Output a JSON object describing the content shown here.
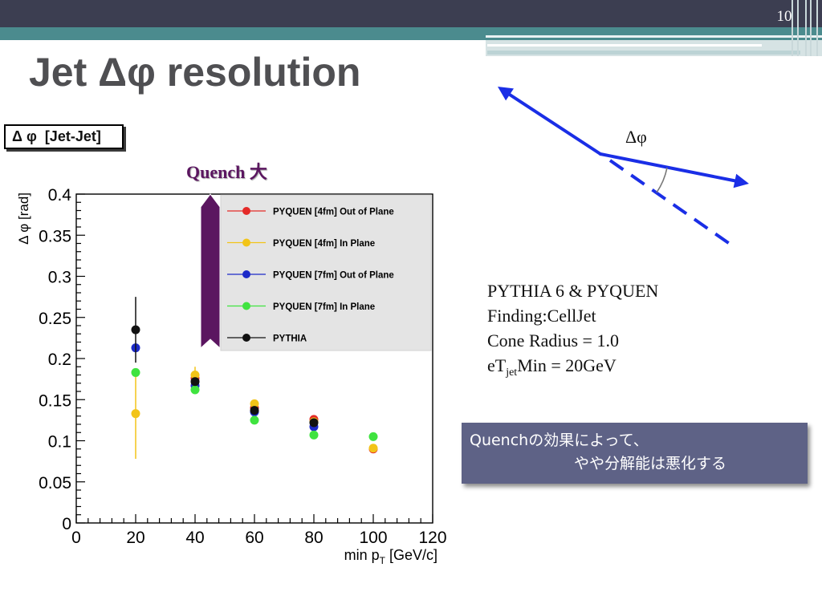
{
  "slide": {
    "page_number": "10",
    "title": "Jet Δφ resolution"
  },
  "theme": {
    "header_dark": "#3c3e51",
    "header_teal": "#4b8b8e",
    "title_color": "#4f4f52",
    "annotation_purple": "#5b1660",
    "diagram_blue": "#1a2ee6",
    "note_background": "#5e6286"
  },
  "annotation": {
    "text": "Quench 大"
  },
  "chart_data": {
    "type": "scatter",
    "title": "Δ φ  [Jet-Jet]",
    "xlabel": {
      "main": "min p",
      "sub": "T",
      "unit": " [GeV/c]"
    },
    "ylabel": "Δ φ [rad]",
    "xlim": [
      0,
      120
    ],
    "ylim": [
      0,
      0.4
    ],
    "xticks": [
      "0",
      "20",
      "40",
      "60",
      "80",
      "100",
      "120"
    ],
    "yticks": [
      "0",
      "0.05",
      "0.1",
      "0.15",
      "0.2",
      "0.25",
      "0.3",
      "0.35",
      "0.4"
    ],
    "grid": false,
    "legend_position": "top-right",
    "series": [
      {
        "name": "PYQUEN [4fm] Out of Plane",
        "color": "#e42a28",
        "points": [
          {
            "x": 40,
            "y": 0.176
          },
          {
            "x": 60,
            "y": 0.14
          },
          {
            "x": 80,
            "y": 0.126
          },
          {
            "x": 100,
            "y": 0.09
          }
        ]
      },
      {
        "name": "PYQUEN [4fm] In Plane",
        "color": "#f2c418",
        "points": [
          {
            "x": 20,
            "y": 0.133,
            "yerr": 0.055
          },
          {
            "x": 40,
            "y": 0.18,
            "yerr": 0.01
          },
          {
            "x": 60,
            "y": 0.145
          },
          {
            "x": 80,
            "y": 0.123
          },
          {
            "x": 100,
            "y": 0.091
          }
        ]
      },
      {
        "name": "PYQUEN [7fm] Out of Plane",
        "color": "#1c2ac8",
        "points": [
          {
            "x": 20,
            "y": 0.213
          },
          {
            "x": 40,
            "y": 0.167
          },
          {
            "x": 60,
            "y": 0.135
          },
          {
            "x": 80,
            "y": 0.117
          }
        ]
      },
      {
        "name": "PYQUEN [7fm] In Plane",
        "color": "#3fe33f",
        "points": [
          {
            "x": 20,
            "y": 0.183
          },
          {
            "x": 40,
            "y": 0.162
          },
          {
            "x": 60,
            "y": 0.125
          },
          {
            "x": 80,
            "y": 0.107
          },
          {
            "x": 100,
            "y": 0.105
          }
        ]
      },
      {
        "name": "PYTHIA",
        "color": "#111111",
        "points": [
          {
            "x": 20,
            "y": 0.235,
            "yerr": 0.04
          },
          {
            "x": 40,
            "y": 0.172
          },
          {
            "x": 60,
            "y": 0.137
          },
          {
            "x": 80,
            "y": 0.122
          }
        ]
      }
    ]
  },
  "diagram": {
    "angle_label": "Δφ"
  },
  "info": {
    "generator": "PYTHIA 6 & PYQUEN",
    "finding": "Finding:CellJet",
    "cone_radius": "Cone Radius = 1.0",
    "et_prefix": "eT",
    "et_subscript": "jet",
    "et_suffix": "Min = 20GeV"
  },
  "note": {
    "line1": "Quenchの効果によって、",
    "line2": "やや分解能は悪化する"
  }
}
